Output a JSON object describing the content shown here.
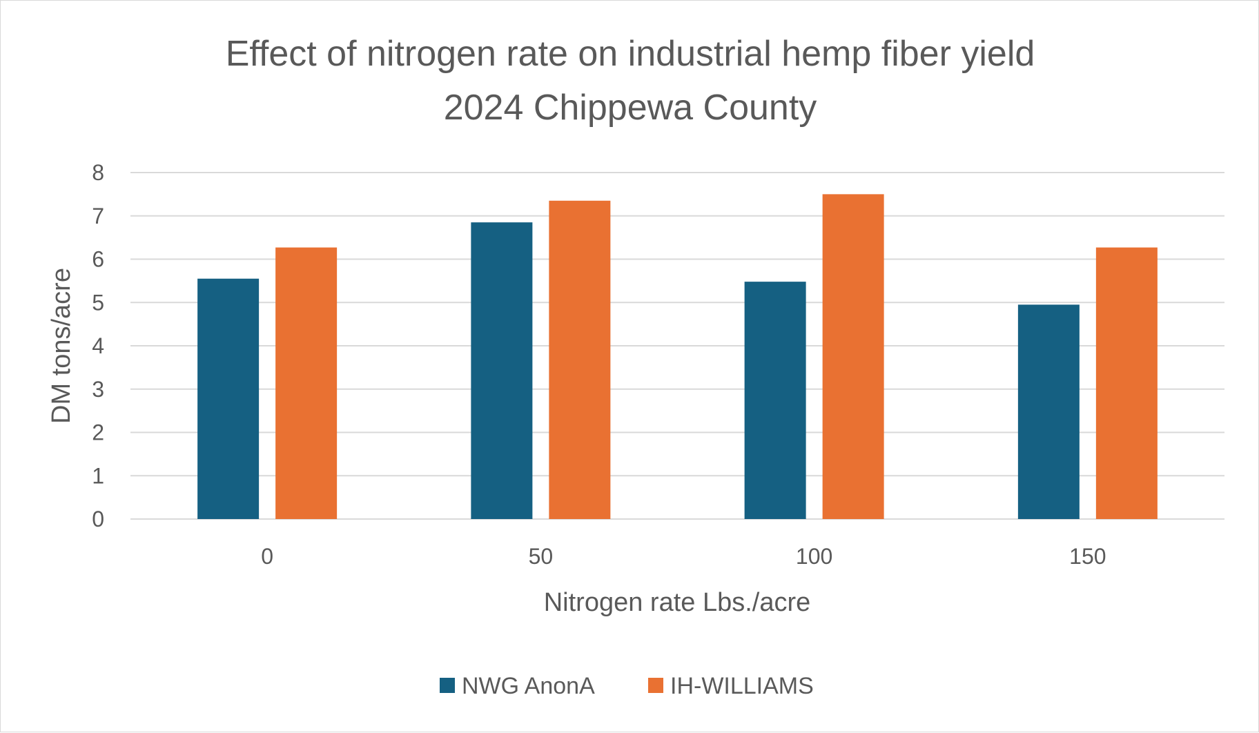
{
  "chart_data": {
    "type": "bar",
    "title": "Effect of nitrogen rate on industrial hemp fiber yield",
    "subtitle": "2024 Chippewa County",
    "xlabel": "Nitrogen rate Lbs./acre",
    "ylabel": "DM tons/acre",
    "categories": [
      "0",
      "50",
      "100",
      "150"
    ],
    "ylim": [
      0,
      8
    ],
    "yticks": [
      "0",
      "1",
      "2",
      "3",
      "4",
      "5",
      "6",
      "7",
      "8"
    ],
    "grid": true,
    "legend_position": "bottom",
    "series": [
      {
        "name": "NWG AnonA",
        "color": "#156082",
        "values": [
          5.55,
          6.85,
          5.48,
          4.95
        ]
      },
      {
        "name": "IH-WILLIAMS",
        "color": "#E97132",
        "values": [
          6.27,
          7.35,
          7.5,
          6.27
        ]
      }
    ]
  }
}
